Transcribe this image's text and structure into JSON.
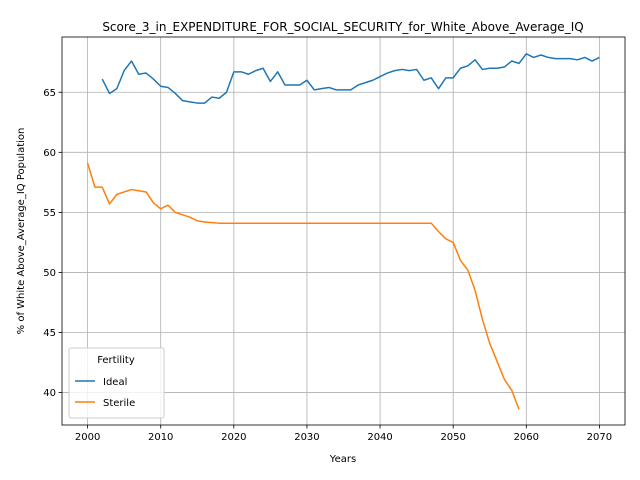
{
  "chart_data": {
    "type": "line",
    "title": "Score_3_in_EXPENDITURE_FOR_SOCIAL_SECURITY_for_White_Above_Average_IQ",
    "xlabel": "Years",
    "ylabel": "% of White Above_Average_IQ Population",
    "xlim": [
      1996.5,
      2073.5
    ],
    "ylim": [
      37.3,
      69.6
    ],
    "xticks": [
      2000,
      2010,
      2020,
      2030,
      2040,
      2050,
      2060,
      2070
    ],
    "yticks": [
      40,
      45,
      50,
      55,
      60,
      65
    ],
    "grid": true,
    "legend": {
      "title": "Fertility",
      "placement": "lower-left"
    },
    "series": [
      {
        "name": "Ideal",
        "color": "#1f77b4",
        "x": [
          2002,
          2003,
          2004,
          2005,
          2006,
          2007,
          2008,
          2009,
          2010,
          2011,
          2012,
          2013,
          2014,
          2015,
          2016,
          2017,
          2018,
          2019,
          2020,
          2021,
          2022,
          2023,
          2024,
          2025,
          2026,
          2027,
          2028,
          2029,
          2030,
          2031,
          2032,
          2033,
          2034,
          2035,
          2036,
          2037,
          2038,
          2039,
          2040,
          2041,
          2042,
          2043,
          2044,
          2045,
          2046,
          2047,
          2048,
          2049,
          2050,
          2051,
          2052,
          2053,
          2054,
          2055,
          2056,
          2057,
          2058,
          2059,
          2060,
          2061,
          2062,
          2063,
          2064,
          2065,
          2066,
          2067,
          2068,
          2069,
          2070
        ],
        "y": [
          66.1,
          64.9,
          65.3,
          66.8,
          67.6,
          66.5,
          66.6,
          66.1,
          65.5,
          65.4,
          64.9,
          64.3,
          64.2,
          64.1,
          64.1,
          64.6,
          64.5,
          65.0,
          66.7,
          66.7,
          66.5,
          66.8,
          67.0,
          65.9,
          66.7,
          65.6,
          65.6,
          65.6,
          66.0,
          65.2,
          65.3,
          65.4,
          65.2,
          65.2,
          65.2,
          65.6,
          65.8,
          66.0,
          66.3,
          66.6,
          66.8,
          66.9,
          66.8,
          66.9,
          66.0,
          66.2,
          65.3,
          66.2,
          66.2,
          67.0,
          67.2,
          67.7,
          66.9,
          67.0,
          67.0,
          67.1,
          67.6,
          67.4,
          68.2,
          67.9,
          68.1,
          67.9,
          67.8,
          67.8,
          67.8,
          67.7,
          67.9,
          67.6,
          67.9
        ]
      },
      {
        "name": "Sterile",
        "color": "#ff7f0e",
        "x": [
          2000,
          2001,
          2002,
          2003,
          2004,
          2005,
          2006,
          2007,
          2008,
          2009,
          2010,
          2011,
          2012,
          2013,
          2014,
          2015,
          2016,
          2017,
          2018,
          2019,
          2020,
          2025,
          2030,
          2035,
          2040,
          2045,
          2047,
          2048,
          2049,
          2050,
          2051,
          2052,
          2053,
          2054,
          2055,
          2056,
          2057,
          2058,
          2059
        ],
        "y": [
          59.1,
          57.1,
          57.1,
          55.7,
          56.5,
          56.7,
          56.9,
          56.8,
          56.7,
          55.8,
          55.3,
          55.6,
          55.0,
          54.8,
          54.6,
          54.3,
          54.2,
          54.15,
          54.1,
          54.1,
          54.1,
          54.1,
          54.1,
          54.1,
          54.1,
          54.1,
          54.1,
          53.4,
          52.8,
          52.5,
          51.0,
          50.2,
          48.5,
          46.1,
          44.1,
          42.6,
          41.1,
          40.2,
          38.6
        ]
      }
    ]
  }
}
